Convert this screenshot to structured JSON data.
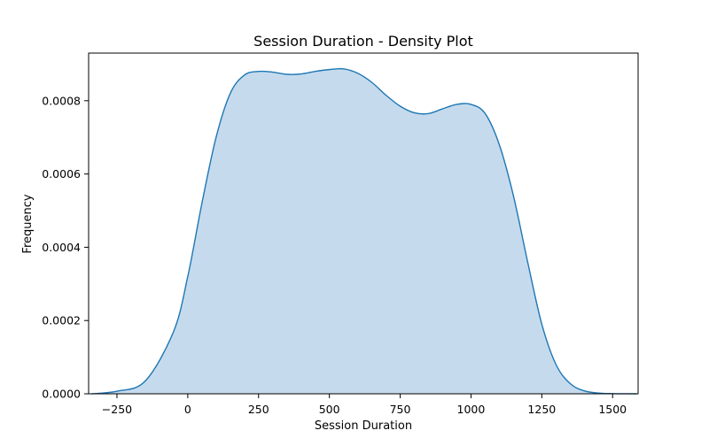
{
  "chart_data": {
    "type": "area",
    "title": "Session Duration - Density Plot",
    "xlabel": "Session Duration",
    "ylabel": "Frequency",
    "xlim": [
      -350,
      1590
    ],
    "ylim": [
      0,
      0.00093
    ],
    "x_ticks": [
      -250,
      0,
      250,
      500,
      750,
      1000,
      1250,
      1500
    ],
    "x_tick_labels": [
      "−250",
      "0",
      "250",
      "500",
      "750",
      "1000",
      "1250",
      "1500"
    ],
    "y_ticks": [
      0,
      0.0002,
      0.0004,
      0.0006,
      0.0008
    ],
    "y_tick_labels": [
      "0.0000",
      "0.0002",
      "0.0004",
      "0.0006",
      "0.0008"
    ],
    "grid": false,
    "colors": {
      "line": "#1f77b4",
      "fill": "#c5dbed"
    },
    "series": [
      {
        "x": [
          -340,
          -250,
          -150,
          -50,
          0,
          50,
          100,
          150,
          200,
          250,
          300,
          350,
          400,
          450,
          500,
          550,
          600,
          650,
          700,
          750,
          800,
          850,
          900,
          950,
          1000,
          1050,
          1100,
          1150,
          1200,
          1250,
          1300,
          1350,
          1400,
          1450,
          1500,
          1550,
          1585
        ],
        "y": [
          0.0,
          7e-06,
          3.5e-05,
          0.00017,
          0.00032,
          0.00052,
          0.0007,
          0.00082,
          0.00087,
          0.00088,
          0.000878,
          0.000872,
          0.000873,
          0.00088,
          0.000885,
          0.000887,
          0.000875,
          0.00085,
          0.000815,
          0.000785,
          0.000767,
          0.000765,
          0.000778,
          0.00079,
          0.00079,
          0.000765,
          0.00068,
          0.00054,
          0.00036,
          0.00019,
          8e-05,
          2.8e-05,
          8e-06,
          2e-06,
          5e-07,
          1e-07,
          0.0
        ]
      }
    ]
  }
}
